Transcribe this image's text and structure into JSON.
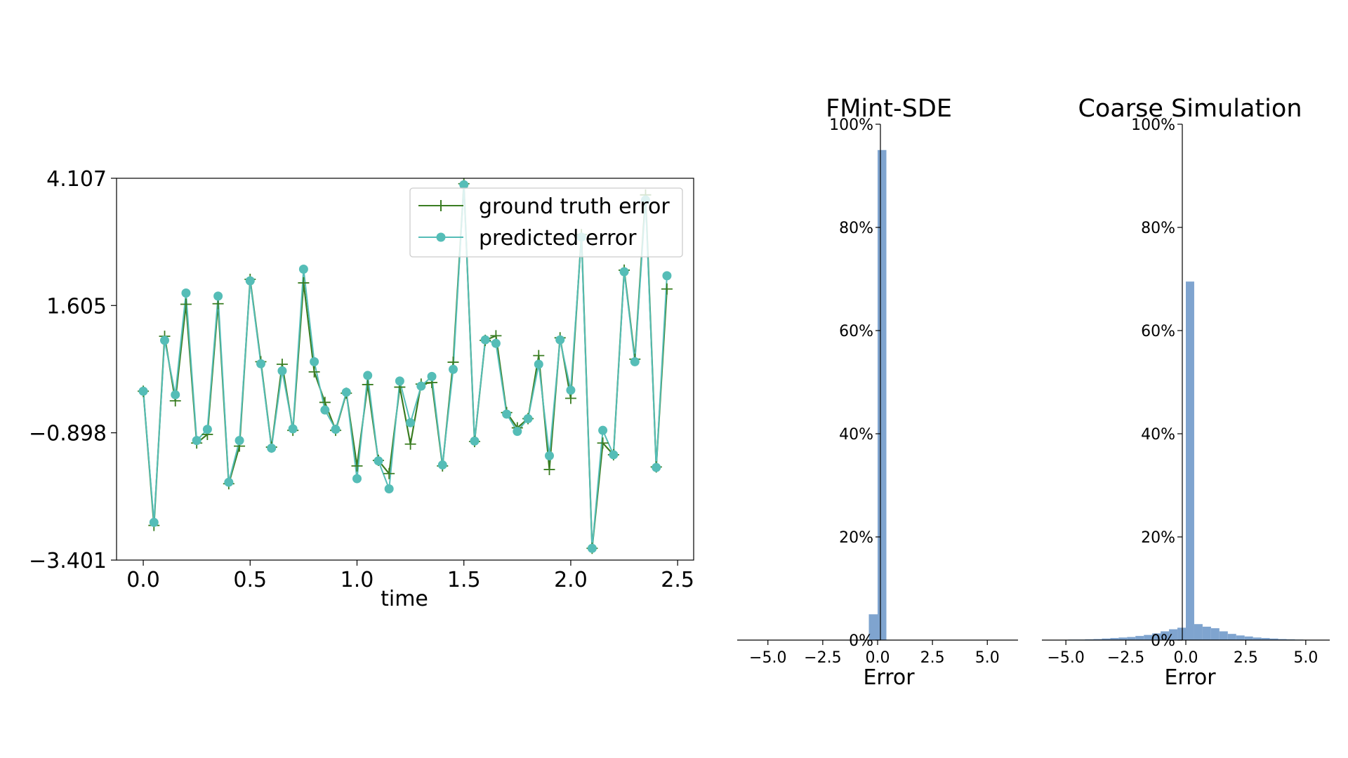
{
  "chart_data": [
    {
      "type": "line",
      "xlabel": "time",
      "ylabel": "",
      "xlim": [
        -0.125,
        2.575
      ],
      "ylim": [
        -3.401,
        4.107
      ],
      "xticks": [
        0.0,
        0.5,
        1.0,
        1.5,
        2.0,
        2.5
      ],
      "xtick_labels": [
        "0.0",
        "0.5",
        "1.0",
        "1.5",
        "2.0",
        "2.5"
      ],
      "yticks": [
        -3.401,
        -0.898,
        1.605,
        4.107
      ],
      "ytick_labels": [
        "−3.401",
        "−0.898",
        "1.605",
        "4.107"
      ],
      "legend_placement": "top-right",
      "x": [
        0.0,
        0.05,
        0.1,
        0.15,
        0.2,
        0.25,
        0.3,
        0.35,
        0.4,
        0.45,
        0.5,
        0.55,
        0.6,
        0.65,
        0.7,
        0.75,
        0.8,
        0.85,
        0.9,
        0.95,
        1.0,
        1.05,
        1.1,
        1.15,
        1.2,
        1.25,
        1.3,
        1.35,
        1.4,
        1.45,
        1.5,
        1.55,
        1.6,
        1.65,
        1.7,
        1.75,
        1.8,
        1.85,
        1.9,
        1.95,
        2.0,
        2.05,
        2.1,
        2.15,
        2.2,
        2.25,
        2.3,
        2.35,
        2.4,
        2.45
      ],
      "series": [
        {
          "name": "ground truth error",
          "color": "#3a7d22",
          "marker": "plus",
          "values": [
            -0.08,
            -2.72,
            1.0,
            -0.27,
            1.63,
            -1.1,
            -0.93,
            1.64,
            -1.9,
            -1.16,
            2.12,
            0.5,
            -1.18,
            0.45,
            -0.85,
            2.05,
            0.3,
            -0.3,
            -0.85,
            -0.12,
            -1.55,
            0.05,
            -1.44,
            -1.7,
            0.0,
            -1.12,
            0.06,
            0.09,
            -1.55,
            0.49,
            4.0,
            -1.07,
            0.92,
            1.01,
            -0.5,
            -0.8,
            -0.62,
            0.62,
            -1.62,
            0.97,
            -0.22,
            3.0,
            -3.17,
            -1.1,
            -1.33,
            2.3,
            0.55,
            3.78,
            -1.57,
            1.93
          ]
        },
        {
          "name": "predicted error",
          "color": "#55bdb7",
          "marker": "circle",
          "values": [
            -0.08,
            -2.66,
            0.92,
            -0.15,
            1.85,
            -1.05,
            -0.83,
            1.79,
            -1.87,
            -1.05,
            2.09,
            0.46,
            -1.2,
            0.32,
            -0.82,
            2.32,
            0.5,
            -0.45,
            -0.83,
            -0.1,
            -1.8,
            0.23,
            -1.45,
            -2.0,
            0.12,
            -0.7,
            0.02,
            0.21,
            -1.53,
            0.35,
            3.98,
            -1.06,
            0.93,
            0.86,
            -0.53,
            -0.87,
            -0.62,
            0.45,
            -1.35,
            0.93,
            -0.06,
            2.95,
            -3.17,
            -0.85,
            -1.33,
            2.27,
            0.5,
            3.68,
            -1.58,
            2.19
          ]
        }
      ]
    },
    {
      "type": "bar",
      "title": "FMint-SDE",
      "xlabel": "Error",
      "ylabel": "",
      "xlim": [
        -6.4,
        6.4
      ],
      "ylim": [
        0,
        100
      ],
      "xticks": [
        -5.0,
        -2.5,
        0.0,
        2.5,
        5.0
      ],
      "xtick_labels": [
        "−5.0",
        "−2.5",
        "0.0",
        "2.5",
        "5.0"
      ],
      "yticks": [
        0,
        20,
        40,
        60,
        80,
        100
      ],
      "ytick_labels": [
        "0%",
        "20%",
        "40%",
        "60%",
        "80%",
        "100%"
      ],
      "bin_width": 0.4,
      "bin_left_edges": [
        -0.4,
        0.0
      ],
      "values": [
        5,
        95
      ],
      "color": "#7fa4cf"
    },
    {
      "type": "bar",
      "title": "Coarse Simulation",
      "xlabel": "Error",
      "ylabel": "",
      "xlim": [
        -6.0,
        6.0
      ],
      "ylim": [
        0,
        100
      ],
      "xticks": [
        -5.0,
        -2.5,
        0.0,
        2.5,
        5.0
      ],
      "xtick_labels": [
        "−5.0",
        "−2.5",
        "0.0",
        "2.5",
        "5.0"
      ],
      "yticks": [
        0,
        20,
        40,
        60,
        80,
        100
      ],
      "ytick_labels": [
        "0%",
        "20%",
        "40%",
        "60%",
        "80%",
        "100%"
      ],
      "bin_width": 0.35,
      "bin_left_edges": [
        -4.9,
        -4.55,
        -4.2,
        -3.85,
        -3.5,
        -3.15,
        -2.8,
        -2.45,
        -2.1,
        -1.75,
        -1.4,
        -1.05,
        -0.7,
        -0.35,
        0.0,
        0.35,
        0.7,
        1.05,
        1.4,
        1.75,
        2.1,
        2.45,
        2.8,
        3.15,
        3.5,
        3.85,
        4.2,
        4.55
      ],
      "values": [
        0.1,
        0.1,
        0.15,
        0.2,
        0.3,
        0.4,
        0.5,
        0.6,
        0.8,
        1.0,
        1.3,
        1.7,
        2.1,
        2.4,
        69.5,
        3.1,
        2.6,
        2.3,
        1.7,
        1.2,
        0.9,
        0.7,
        0.5,
        0.4,
        0.3,
        0.2,
        0.15,
        0.1
      ],
      "color": "#7fa4cf"
    }
  ]
}
